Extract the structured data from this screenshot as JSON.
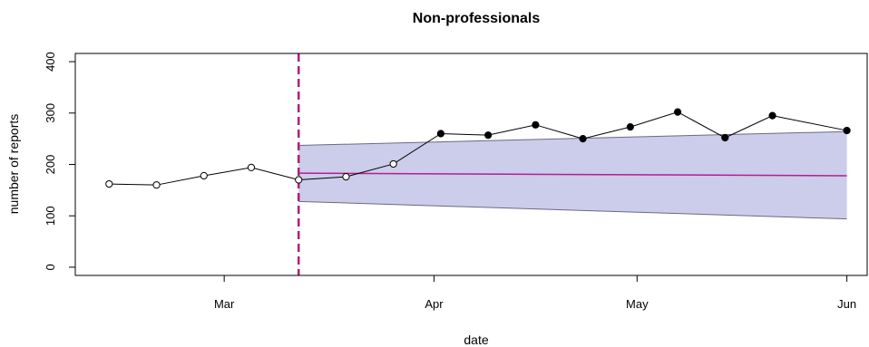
{
  "chart_data": {
    "type": "line",
    "title": "Non-professionals",
    "xlabel": "date",
    "ylabel": "number of reports",
    "ylim": [
      0,
      400
    ],
    "y_ticks": [
      0,
      100,
      200,
      300,
      400
    ],
    "x_ticks": [
      {
        "date": "2020-03-01",
        "label": "Mar"
      },
      {
        "date": "2020-04-01",
        "label": "Apr"
      },
      {
        "date": "2020-05-01",
        "label": "May"
      },
      {
        "date": "2020-06-01",
        "label": "Jun"
      }
    ],
    "xlim": [
      "2020-02-08",
      "2020-06-04"
    ],
    "observed": [
      {
        "date": "2020-02-13",
        "value": 162,
        "filled": false
      },
      {
        "date": "2020-02-20",
        "value": 160,
        "filled": false
      },
      {
        "date": "2020-02-27",
        "value": 178,
        "filled": false
      },
      {
        "date": "2020-03-05",
        "value": 194,
        "filled": false
      },
      {
        "date": "2020-03-12",
        "value": 170,
        "filled": false
      },
      {
        "date": "2020-03-19",
        "value": 176,
        "filled": false
      },
      {
        "date": "2020-03-26",
        "value": 201,
        "filled": false
      },
      {
        "date": "2020-04-02",
        "value": 260,
        "filled": true
      },
      {
        "date": "2020-04-09",
        "value": 257,
        "filled": true
      },
      {
        "date": "2020-04-16",
        "value": 277,
        "filled": true
      },
      {
        "date": "2020-04-23",
        "value": 250,
        "filled": true
      },
      {
        "date": "2020-04-30",
        "value": 273,
        "filled": true
      },
      {
        "date": "2020-05-07",
        "value": 302,
        "filled": true
      },
      {
        "date": "2020-05-14",
        "value": 252,
        "filled": true
      },
      {
        "date": "2020-05-21",
        "value": 295,
        "filled": true
      },
      {
        "date": "2020-06-01",
        "value": 266,
        "filled": true
      }
    ],
    "forecast": {
      "dates": [
        "2020-03-12",
        "2020-06-01"
      ],
      "mean": [
        183,
        178
      ],
      "upper": [
        237,
        264
      ],
      "lower": [
        128,
        94
      ]
    },
    "intervention_date": "2020-03-12",
    "colors": {
      "band": "#cccceb",
      "mean_line": "#b0208f",
      "intervention_line": "#b0207a",
      "series": "#000000"
    },
    "grid": false,
    "legend": "none"
  }
}
